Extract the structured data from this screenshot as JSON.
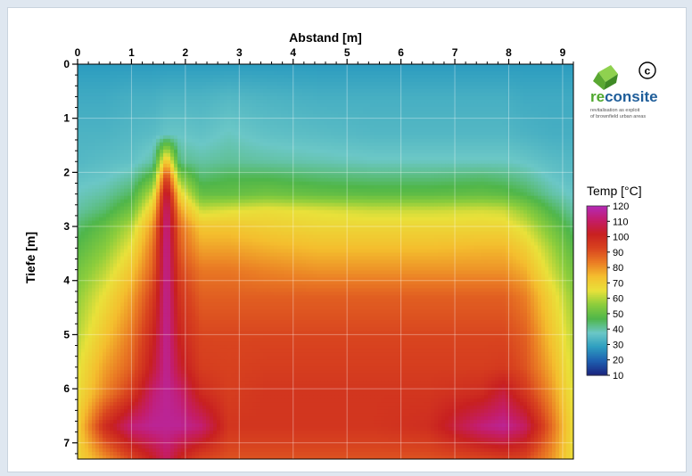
{
  "chart_data": {
    "type": "heatmap",
    "title": "",
    "xlabel": "Abstand [m]",
    "ylabel": "Tiefe [m]",
    "xlim": [
      0,
      9.2
    ],
    "ylim": [
      7.3,
      0
    ],
    "x_ticks": [
      0,
      1,
      2,
      3,
      4,
      5,
      6,
      7,
      8,
      9
    ],
    "y_ticks": [
      0,
      1,
      2,
      3,
      4,
      5,
      6,
      7
    ],
    "colorbar": {
      "label": "Temp [°C]",
      "ticks": [
        120,
        110,
        100,
        90,
        80,
        70,
        60,
        50,
        40,
        30,
        20,
        10
      ],
      "range": [
        10,
        120
      ],
      "colors": [
        "#1a237e",
        "#1e5fb0",
        "#2e9ec0",
        "#6bc7c6",
        "#4fb64a",
        "#8ccd3c",
        "#e9e13a",
        "#f4be2e",
        "#ea7c24",
        "#d8431f",
        "#c82020",
        "#c41d6a",
        "#b42ab7"
      ]
    },
    "grid": true,
    "temperature_field": {
      "x": [
        0,
        0.5,
        1.0,
        1.4,
        1.65,
        1.9,
        2.3,
        2.8,
        3.5,
        4.5,
        5.5,
        6.5,
        7.5,
        7.9,
        8.3,
        8.8,
        9.2
      ],
      "y": [
        0,
        0.6,
        1.3,
        1.8,
        2.1,
        2.4,
        2.7,
        3.0,
        3.4,
        3.8,
        4.3,
        5.0,
        5.6,
        6.1,
        6.7,
        7.3
      ],
      "values": [
        [
          28,
          28,
          28,
          28,
          28,
          28,
          28,
          28,
          28,
          28,
          28,
          28,
          28,
          28,
          28,
          28,
          28
        ],
        [
          31,
          31,
          32,
          32,
          33,
          33,
          33,
          34,
          33,
          32,
          32,
          32,
          32,
          32,
          31,
          31,
          31
        ],
        [
          33,
          33,
          34,
          35,
          37,
          37,
          36,
          38,
          36,
          35,
          34,
          34,
          34,
          34,
          33,
          32,
          32
        ],
        [
          34,
          35,
          36,
          40,
          75,
          42,
          40,
          41,
          40,
          39,
          38,
          38,
          38,
          38,
          37,
          35,
          34
        ],
        [
          36,
          37,
          40,
          50,
          95,
          55,
          44,
          46,
          46,
          44,
          43,
          43,
          44,
          43,
          41,
          37,
          35
        ],
        [
          38,
          40,
          45,
          62,
          108,
          68,
          50,
          50,
          52,
          50,
          49,
          49,
          50,
          49,
          46,
          40,
          37
        ],
        [
          40,
          44,
          52,
          72,
          113,
          78,
          62,
          64,
          66,
          64,
          62,
          62,
          63,
          62,
          56,
          46,
          40
        ],
        [
          44,
          50,
          60,
          80,
          115,
          85,
          72,
          72,
          70,
          68,
          68,
          68,
          68,
          68,
          63,
          52,
          44
        ],
        [
          48,
          55,
          66,
          85,
          116,
          88,
          78,
          78,
          76,
          74,
          74,
          74,
          75,
          75,
          70,
          58,
          48
        ],
        [
          52,
          60,
          72,
          88,
          116,
          92,
          84,
          84,
          82,
          80,
          80,
          80,
          80,
          80,
          76,
          62,
          52
        ],
        [
          56,
          66,
          78,
          94,
          116,
          96,
          88,
          88,
          88,
          88,
          88,
          88,
          88,
          88,
          83,
          68,
          56
        ],
        [
          60,
          72,
          84,
          100,
          116,
          100,
          92,
          92,
          92,
          92,
          92,
          92,
          92,
          92,
          88,
          72,
          60
        ],
        [
          64,
          78,
          88,
          104,
          116,
          104,
          94,
          93,
          94,
          94,
          94,
          94,
          94,
          95,
          90,
          76,
          62
        ],
        [
          66,
          82,
          95,
          112,
          116,
          112,
          99,
          94,
          96,
          96,
          96,
          96,
          99,
          106,
          96,
          80,
          64
        ],
        [
          70,
          98,
          113,
          116,
          116,
          116,
          112,
          96,
          96,
          96,
          96,
          98,
          113,
          116,
          110,
          86,
          66
        ],
        [
          68,
          80,
          92,
          102,
          110,
          100,
          92,
          90,
          90,
          90,
          90,
          90,
          92,
          94,
          92,
          80,
          66
        ]
      ]
    }
  },
  "logo": {
    "name_part1": "re",
    "name_part2": "consite",
    "tagline_line1": "revitalisation as exploit",
    "tagline_line2": "of brownfield urban areas",
    "copyright_symbol": "c",
    "icon": "green-cube-logo-icon"
  }
}
